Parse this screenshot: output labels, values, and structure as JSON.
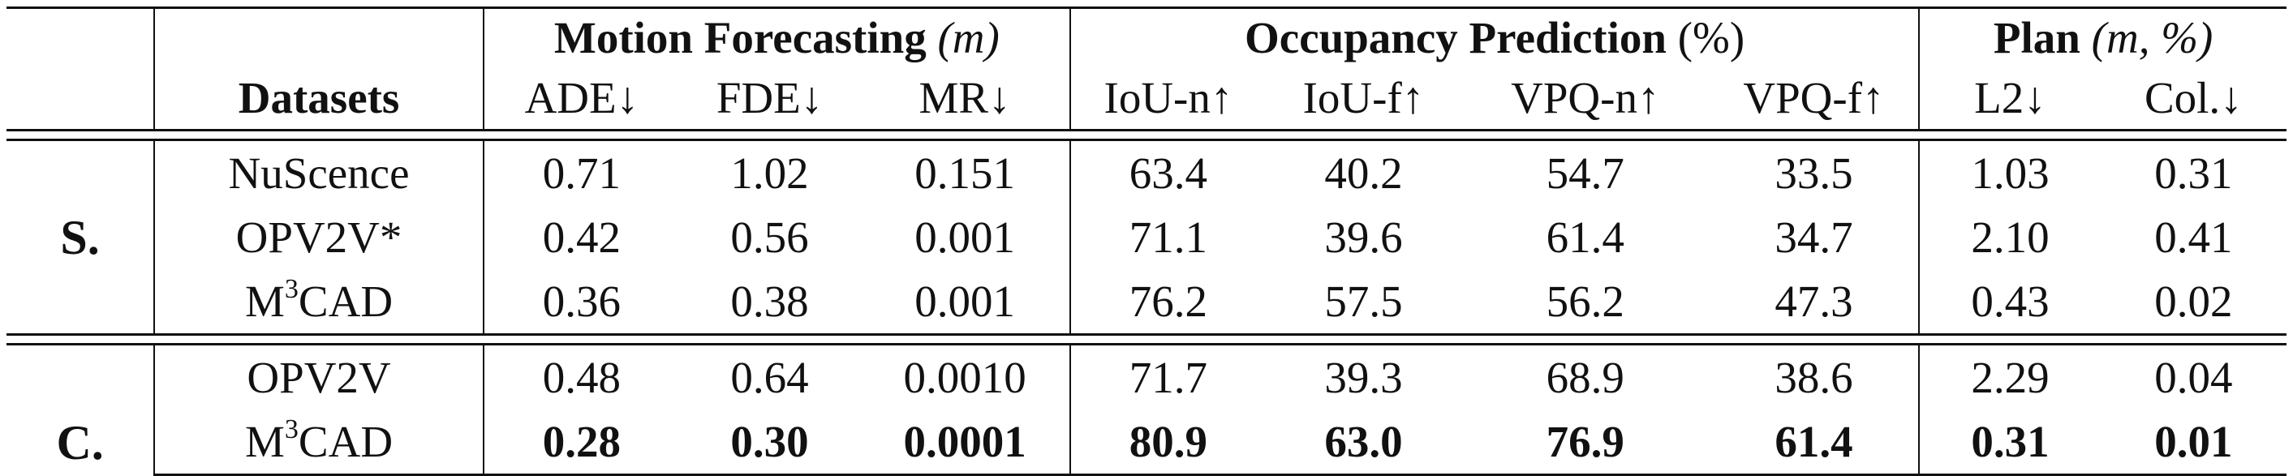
{
  "header": {
    "groups": {
      "motion": {
        "title": "Motion Forecasting",
        "unit": "m"
      },
      "occupancy": {
        "title": "Occupancy Prediction",
        "unit": "(%)"
      },
      "plan": {
        "title": "Plan",
        "unit": "m, %"
      }
    },
    "datasets_label": "Datasets",
    "columns": [
      "ADE↓",
      "FDE↓",
      "MR↓",
      "IoU-n↑",
      "IoU-f↑",
      "VPQ-n↑",
      "VPQ-f↑",
      "L2↓",
      "Col.↓"
    ]
  },
  "sections": [
    {
      "label": "S.",
      "rows": [
        {
          "base": "NuScence",
          "sup": "",
          "suffix": "",
          "values": [
            "0.71",
            "1.02",
            "0.151",
            "63.4",
            "40.2",
            "54.7",
            "33.5",
            "1.03",
            "0.31"
          ]
        },
        {
          "base": "OPV2V*",
          "sup": "",
          "suffix": "",
          "values": [
            "0.42",
            "0.56",
            "0.001",
            "71.1",
            "39.6",
            "61.4",
            "34.7",
            "2.10",
            "0.41"
          ]
        },
        {
          "base": "M",
          "sup": "3",
          "suffix": "CAD",
          "values": [
            "0.36",
            "0.38",
            "0.001",
            "76.2",
            "57.5",
            "56.2",
            "47.3",
            "0.43",
            "0.02"
          ]
        }
      ]
    },
    {
      "label": "C.",
      "rows": [
        {
          "base": "OPV2V",
          "sup": "",
          "suffix": "",
          "values": [
            "0.48",
            "0.64",
            "0.0010",
            "71.7",
            "39.3",
            "68.9",
            "38.6",
            "2.29",
            "0.04"
          ]
        },
        {
          "base": "M",
          "sup": "3",
          "suffix": "CAD",
          "bold": true,
          "values": [
            "0.28",
            "0.30",
            "0.0001",
            "80.9",
            "63.0",
            "76.9",
            "61.4",
            "0.31",
            "0.01"
          ]
        }
      ]
    }
  ]
}
